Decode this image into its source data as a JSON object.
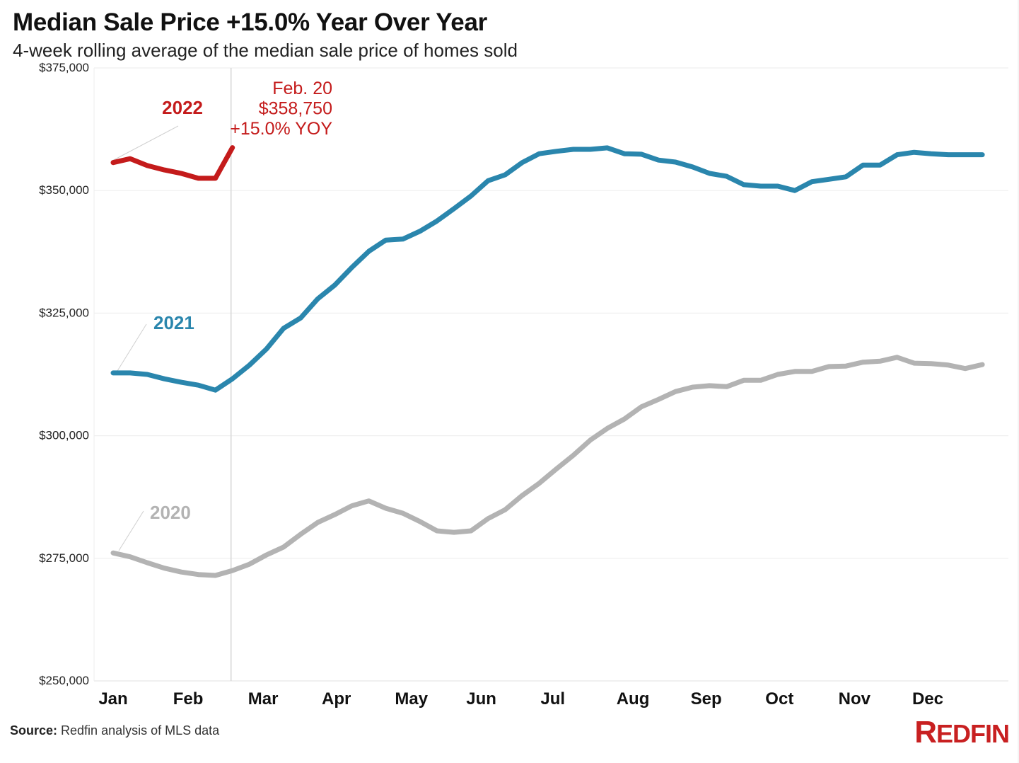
{
  "header": {
    "title": "Median Sale Price +15.0% Year Over Year",
    "subtitle": "4-week rolling average of the median sale price of homes sold"
  },
  "footer": {
    "source_label": "Source:",
    "source_text": " Redfin analysis of MLS data",
    "logo_first": "R",
    "logo_rest": "EDFIN",
    "logo_color": "#c82021"
  },
  "chart_data": {
    "type": "line",
    "title": "Median Sale Price +15.0% Year Over Year",
    "subtitle": "4-week rolling average of the median sale price of homes sold",
    "xlabel": "",
    "ylabel": "",
    "ylim": [
      250000,
      375000
    ],
    "yticks": [
      250000,
      275000,
      300000,
      325000,
      350000,
      375000
    ],
    "ytick_labels": [
      "$250,000",
      "$275,000",
      "$300,000",
      "$325,000",
      "$350,000",
      "$375,000"
    ],
    "x_unit": "week of year",
    "xlim_weeks": [
      0,
      51
    ],
    "month_labels": [
      "Jan",
      "Feb",
      "Mar",
      "Apr",
      "May",
      "Jun",
      "Jul",
      "Aug",
      "Sep",
      "Oct",
      "Nov",
      "Dec"
    ],
    "month_label_week_positions": [
      0,
      4.4,
      8.8,
      13.1,
      17.5,
      21.6,
      25.8,
      30.5,
      34.8,
      39.1,
      43.5,
      47.8
    ],
    "grid": true,
    "legend": "inline labels",
    "marker_week": 7,
    "series": [
      {
        "name": "2020",
        "label": "2020",
        "color": "#b3b3b3",
        "label_color": "#b3b3b3",
        "values": [
          276100,
          275300,
          274100,
          273000,
          272200,
          271700,
          271500,
          272500,
          273800,
          275700,
          277300,
          279900,
          282300,
          283900,
          285700,
          286700,
          285200,
          284200,
          282500,
          280600,
          280300,
          280600,
          283100,
          284900,
          287800,
          290300,
          293200,
          296000,
          299100,
          301500,
          303400,
          305900,
          307400,
          309000,
          309900,
          310200,
          310000,
          311300,
          311300,
          312500,
          313100,
          313100,
          314100,
          314200,
          315000,
          315200,
          316000,
          314800,
          314700,
          314400,
          313700,
          314500
        ]
      },
      {
        "name": "2021",
        "label": "2021",
        "color": "#2a86ad",
        "label_color": "#2a86ad",
        "values": [
          312800,
          312800,
          312500,
          311600,
          310900,
          310300,
          309300,
          311600,
          314400,
          317700,
          321900,
          324000,
          327900,
          330700,
          334300,
          337600,
          339900,
          340100,
          341700,
          343800,
          346300,
          348900,
          352000,
          353200,
          355700,
          357500,
          358000,
          358400,
          358400,
          358700,
          357500,
          357400,
          356200,
          355800,
          354800,
          353500,
          352900,
          351200,
          350900,
          350900,
          350000,
          351800,
          352300,
          352800,
          355200,
          355200,
          357300,
          357800,
          357500,
          357300,
          357300,
          357300
        ]
      },
      {
        "name": "2022",
        "label": "2022",
        "color": "#c41b1b",
        "label_color": "#c41b1b",
        "values": [
          355700,
          356500,
          355100,
          354200,
          353500,
          352500,
          352500,
          358750
        ]
      }
    ],
    "annotations": [
      {
        "series": "2022",
        "lines": [
          "Feb. 20",
          "$358,750",
          "+15.0% YOY"
        ],
        "color": "#c41b1b"
      }
    ]
  }
}
